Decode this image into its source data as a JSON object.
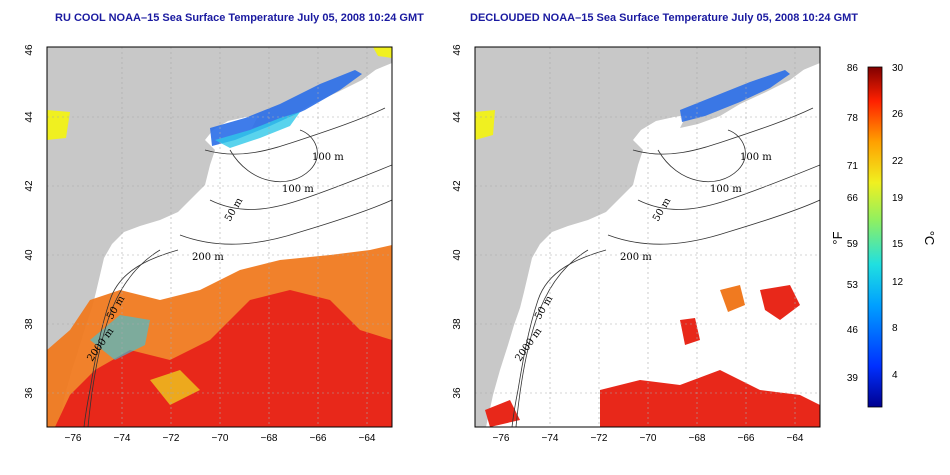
{
  "left_panel": {
    "title": "RU COOL NOAA–15 Sea Surface Temperature July 05, 2008 10:24 GMT",
    "x_ticks": [
      "−76",
      "−74",
      "−72",
      "−70",
      "−68",
      "−66",
      "−64"
    ],
    "y_ticks": [
      "46",
      "44",
      "42",
      "40",
      "38",
      "36"
    ]
  },
  "right_panel": {
    "title": "DECLOUDED NOAA–15 Sea Surface Temperature July 05, 2008 10:24 GMT",
    "x_ticks": [
      "−76",
      "−74",
      "−72",
      "−70",
      "−68",
      "−66",
      "−64"
    ],
    "y_ticks": [
      "46",
      "44",
      "42",
      "40",
      "38",
      "36"
    ]
  },
  "contour_labels": [
    "100 m",
    "100 m",
    "50 m",
    "200 m",
    "50 m",
    "2000 m"
  ],
  "colorbar": {
    "f_ticks": [
      "86",
      "78",
      "71",
      "66",
      "59",
      "53",
      "46",
      "39"
    ],
    "c_ticks": [
      "30",
      "26",
      "22",
      "19",
      "15",
      "12",
      "8",
      "4"
    ],
    "f_unit": "°F",
    "c_unit": "°C"
  },
  "colors": {
    "land": "#c8c8c8",
    "water": "#ffffff",
    "title": "#1a1aa0",
    "warm": "#e8281a",
    "orange": "#f07a20",
    "cool_blue": "#2a6ee8"
  }
}
